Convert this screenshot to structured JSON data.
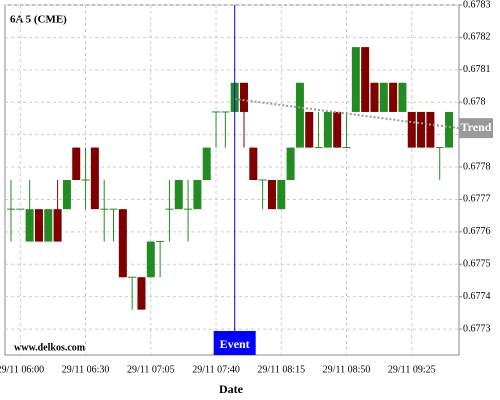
{
  "chart_data": {
    "type": "candlestick",
    "title": "6A 5 (CME)",
    "source": "www.delkos.com",
    "x_label": "Date",
    "categories": [
      null,
      "29/11 06:00",
      null,
      null,
      null,
      null,
      null,
      null,
      "29/11 06:30",
      null,
      null,
      null,
      null,
      null,
      null,
      "29/11 07:05",
      null,
      null,
      null,
      null,
      null,
      null,
      "29/11 07:40",
      null,
      null,
      null,
      null,
      null,
      null,
      "29/11 08:15",
      null,
      null,
      null,
      null,
      null,
      null,
      "29/11 08:50",
      null,
      null,
      null,
      null,
      null,
      null,
      "29/11 09:25",
      null,
      null,
      null,
      null
    ],
    "open": [
      0.67767,
      0.67767,
      0.67757,
      0.67767,
      0.67757,
      0.67767,
      0.67767,
      0.67786,
      0.67776,
      0.67786,
      0.67767,
      0.67767,
      0.67767,
      0.67746,
      0.67746,
      0.67746,
      0.67757,
      0.67767,
      0.67767,
      0.67767,
      0.67767,
      0.67776,
      0.67797,
      0.67797,
      0.67797,
      0.67806,
      0.67786,
      0.67776,
      0.67776,
      0.67767,
      0.67776,
      0.67786,
      0.67797,
      0.67786,
      0.67786,
      0.67797,
      0.67786,
      0.67797,
      0.67817,
      0.67806,
      0.67797,
      0.67806,
      0.67797,
      0.67797,
      0.67797,
      0.67797,
      0.67786,
      0.67786
    ],
    "high": [
      0.67776,
      0.67767,
      0.67776,
      0.67767,
      0.67767,
      0.67776,
      0.67776,
      0.67786,
      0.67786,
      0.67786,
      0.67776,
      0.67767,
      0.67767,
      0.67746,
      0.67746,
      0.67757,
      0.67757,
      0.67776,
      0.67776,
      0.67776,
      0.67776,
      0.67786,
      0.67797,
      0.67797,
      0.67806,
      0.67806,
      0.67786,
      0.67776,
      0.67776,
      0.67776,
      0.67786,
      0.67806,
      0.67797,
      0.67797,
      0.67797,
      0.67797,
      0.67797,
      0.67817,
      0.67817,
      0.67806,
      0.67806,
      0.67806,
      0.67806,
      0.67797,
      0.67797,
      0.67797,
      0.67786,
      0.67797
    ],
    "low": [
      0.67757,
      0.67767,
      0.67757,
      0.67757,
      0.67757,
      0.67757,
      0.67767,
      0.67776,
      0.67767,
      0.67767,
      0.67757,
      0.67757,
      0.67746,
      0.67736,
      0.67736,
      0.67746,
      0.67746,
      0.67757,
      0.67767,
      0.67757,
      0.67767,
      0.67776,
      0.67786,
      0.67786,
      0.67797,
      0.67786,
      0.67776,
      0.67767,
      0.67767,
      0.67767,
      0.67776,
      0.67786,
      0.67786,
      0.67786,
      0.67786,
      0.67786,
      0.67786,
      0.67797,
      0.67797,
      0.67797,
      0.67797,
      0.67797,
      0.67797,
      0.67786,
      0.67786,
      0.67786,
      0.67776,
      0.67786
    ],
    "close": [
      0.67767,
      0.67767,
      0.67767,
      0.67757,
      0.67767,
      0.67757,
      0.67776,
      0.67776,
      0.67776,
      0.67767,
      0.67767,
      0.67767,
      0.67746,
      0.67746,
      0.67736,
      0.67757,
      0.67757,
      0.67767,
      0.67776,
      0.67767,
      0.67776,
      0.67786,
      0.67797,
      0.67797,
      0.67806,
      0.67797,
      0.67776,
      0.67776,
      0.67767,
      0.67776,
      0.67786,
      0.67806,
      0.67786,
      0.67786,
      0.67797,
      0.67786,
      0.67786,
      0.67817,
      0.67797,
      0.67797,
      0.67806,
      0.67797,
      0.67806,
      0.67786,
      0.67786,
      0.67786,
      0.67786,
      0.67797
    ],
    "up_color": "#228b22",
    "down_color": "#800000",
    "ylim": [
      0.67722,
      0.6783
    ],
    "yticks": [
      0.6773,
      0.6774,
      0.6775,
      0.6776,
      0.6777,
      0.6778,
      0.6779,
      0.678,
      0.6781,
      0.6782,
      0.6783
    ],
    "grid": true,
    "event": {
      "label": "Event",
      "x": 24,
      "color": "#0000ff"
    },
    "trend": {
      "label": "Trend",
      "x": [
        24,
        48
      ],
      "values": [
        0.67801,
        0.67792
      ],
      "color": "#999999"
    }
  }
}
